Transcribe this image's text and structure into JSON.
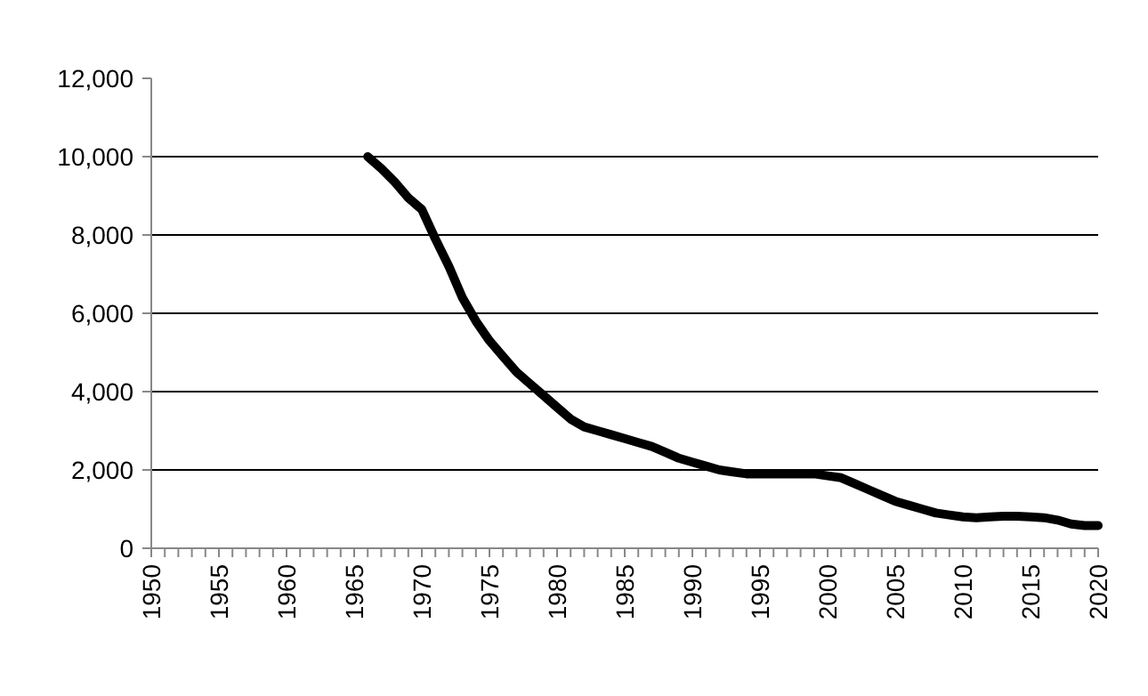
{
  "chart_data": {
    "type": "line",
    "x": [
      1966,
      1967,
      1968,
      1969,
      1970,
      1971,
      1972,
      1973,
      1974,
      1975,
      1976,
      1977,
      1978,
      1979,
      1980,
      1981,
      1982,
      1983,
      1984,
      1985,
      1986,
      1987,
      1988,
      1989,
      1990,
      1991,
      1992,
      1993,
      1994,
      1995,
      1996,
      1997,
      1998,
      1999,
      2000,
      2001,
      2002,
      2003,
      2004,
      2005,
      2006,
      2007,
      2008,
      2009,
      2010,
      2011,
      2012,
      2013,
      2014,
      2015,
      2016,
      2017,
      2018,
      2019,
      2020
    ],
    "series": [
      {
        "color": "#000000",
        "values": [
          10000,
          9700,
          9350,
          8950,
          8650,
          7900,
          7200,
          6400,
          5800,
          5300,
          4900,
          4500,
          4200,
          3900,
          3600,
          3300,
          3100,
          3000,
          2900,
          2800,
          2700,
          2600,
          2450,
          2300,
          2200,
          2100,
          2000,
          1950,
          1900,
          1900,
          1900,
          1900,
          1900,
          1900,
          1850,
          1800,
          1650,
          1500,
          1350,
          1200,
          1100,
          1000,
          900,
          850,
          800,
          780,
          800,
          820,
          820,
          800,
          780,
          720,
          620,
          580,
          580
        ]
      }
    ],
    "xlim": [
      1950,
      2020
    ],
    "xticks": [
      1950,
      {
        "value": 1951,
        "label": null
      },
      {
        "value": 1952,
        "label": null
      },
      {
        "value": 1953,
        "label": null
      },
      {
        "value": 1954,
        "label": null
      },
      1955,
      {
        "value": 1956,
        "label": null
      },
      {
        "value": 1957,
        "label": null
      },
      {
        "value": 1958,
        "label": null
      },
      {
        "value": 1959,
        "label": null
      },
      1960,
      {
        "value": 1961,
        "label": null
      },
      {
        "value": 1962,
        "label": null
      },
      {
        "value": 1963,
        "label": null
      },
      {
        "value": 1964,
        "label": null
      },
      1965,
      {
        "value": 1966,
        "label": null
      },
      {
        "value": 1967,
        "label": null
      },
      {
        "value": 1968,
        "label": null
      },
      {
        "value": 1969,
        "label": null
      },
      1970,
      {
        "value": 1971,
        "label": null
      },
      {
        "value": 1972,
        "label": null
      },
      {
        "value": 1973,
        "label": null
      },
      {
        "value": 1974,
        "label": null
      },
      1975,
      {
        "value": 1976,
        "label": null
      },
      {
        "value": 1977,
        "label": null
      },
      {
        "value": 1978,
        "label": null
      },
      {
        "value": 1979,
        "label": null
      },
      1980,
      {
        "value": 1981,
        "label": null
      },
      {
        "value": 1982,
        "label": null
      },
      {
        "value": 1983,
        "label": null
      },
      {
        "value": 1984,
        "label": null
      },
      1985,
      {
        "value": 1986,
        "label": null
      },
      {
        "value": 1987,
        "label": null
      },
      {
        "value": 1988,
        "label": null
      },
      {
        "value": 1989,
        "label": null
      },
      1990,
      {
        "value": 1991,
        "label": null
      },
      {
        "value": 1992,
        "label": null
      },
      {
        "value": 1993,
        "label": null
      },
      {
        "value": 1994,
        "label": null
      },
      1995,
      {
        "value": 1996,
        "label": null
      },
      {
        "value": 1997,
        "label": null
      },
      {
        "value": 1998,
        "label": null
      },
      {
        "value": 1999,
        "label": null
      },
      2000,
      {
        "value": 2001,
        "label": null
      },
      {
        "value": 2002,
        "label": null
      },
      {
        "value": 2003,
        "label": null
      },
      {
        "value": 2004,
        "label": null
      },
      2005,
      {
        "value": 2006,
        "label": null
      },
      {
        "value": 2007,
        "label": null
      },
      {
        "value": 2008,
        "label": null
      },
      {
        "value": 2009,
        "label": null
      },
      2010,
      {
        "value": 2011,
        "label": null
      },
      {
        "value": 2012,
        "label": null
      },
      {
        "value": 2013,
        "label": null
      },
      {
        "value": 2014,
        "label": null
      },
      2015,
      {
        "value": 2016,
        "label": null
      },
      {
        "value": 2017,
        "label": null
      },
      {
        "value": 2018,
        "label": null
      },
      {
        "value": 2019,
        "label": null
      },
      2020
    ],
    "ylim": [
      0,
      12000
    ],
    "yticks": [
      {
        "value": 0,
        "label": "0"
      },
      {
        "value": 2000,
        "label": "2,000"
      },
      {
        "value": 4000,
        "label": "4,000"
      },
      {
        "value": 6000,
        "label": "6,000"
      },
      {
        "value": 8000,
        "label": "8,000"
      },
      {
        "value": 10000,
        "label": "10,000"
      },
      {
        "value": 12000,
        "label": "12,000"
      }
    ],
    "grid": "y",
    "marker": "none",
    "line_style": "solid"
  }
}
